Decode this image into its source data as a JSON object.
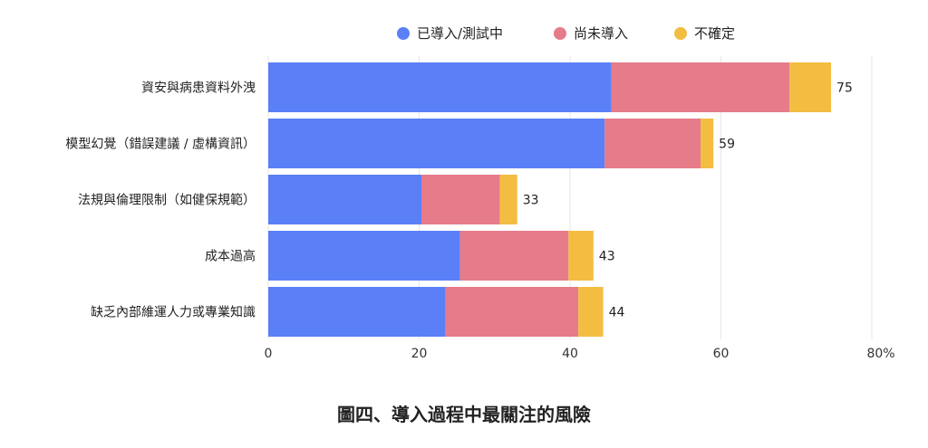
{
  "chart_data": {
    "type": "bar",
    "orientation": "horizontal",
    "stacked": true,
    "title": "圖四、導入過程中最關注的風險",
    "categories": [
      "資安與病患資料外洩",
      "模型幻覺（錯誤建議 / 虛構資訊）",
      "法規與倫理限制（如健保規範）",
      "成本過高",
      "缺乏內部維運人力或專業知識"
    ],
    "series": [
      {
        "name": "已導入/測試中",
        "color": "#5b7ff7",
        "values": [
          45.5,
          44.6,
          20.3,
          25.4,
          23.5
        ]
      },
      {
        "name": "尚未導入",
        "color": "#e67b8a",
        "values": [
          23.6,
          12.7,
          10.4,
          14.4,
          17.6
        ]
      },
      {
        "name": "不確定",
        "color": "#f3bd42",
        "values": [
          5.5,
          1.7,
          2.3,
          3.3,
          3.3
        ]
      }
    ],
    "totals": [
      75,
      59,
      33,
      43,
      44
    ],
    "xlim": [
      0,
      80
    ],
    "xticks": [
      0,
      20,
      40,
      60,
      80
    ],
    "xtick_labels": [
      "0",
      "20",
      "40",
      "60",
      "80%"
    ],
    "legend_position": "top",
    "grid": true
  }
}
